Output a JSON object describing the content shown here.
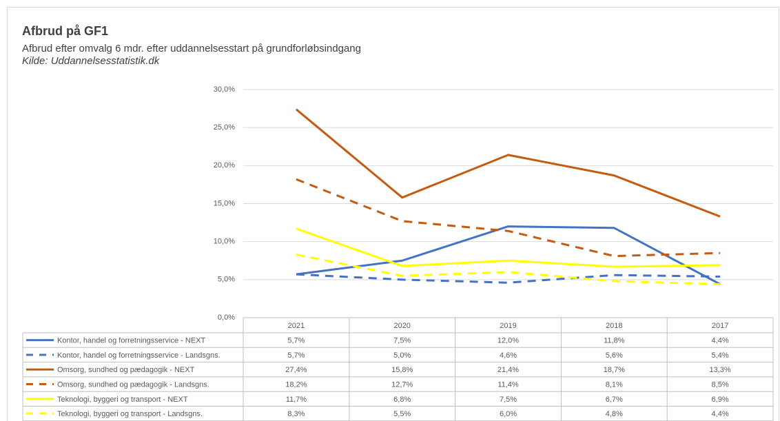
{
  "chart_data": {
    "type": "line",
    "title": "Afbrud på GF1",
    "subtitle": "Afbrud efter omvalg 6 mdr. efter uddannelsesstart på grundforløbsindgang",
    "source": "Kilde: Uddannelsesstatistik.dk",
    "categories": [
      "2021",
      "2020",
      "2019",
      "2018",
      "2017"
    ],
    "ylim": [
      0,
      30
    ],
    "yticks": [
      {
        "value": 0,
        "label": "0,0%"
      },
      {
        "value": 5,
        "label": "5,0%"
      },
      {
        "value": 10,
        "label": "10,0%"
      },
      {
        "value": 15,
        "label": "15,0%"
      },
      {
        "value": 20,
        "label": "20,0%"
      },
      {
        "value": 25,
        "label": "25,0%"
      },
      {
        "value": 30,
        "label": "30,0%"
      }
    ],
    "grid": true,
    "series": [
      {
        "name": "Kontor, handel og forretningsservice - NEXT",
        "color": "#4472c4",
        "dashed": false,
        "values": [
          5.7,
          7.5,
          12.0,
          11.8,
          4.4
        ],
        "value_labels": [
          "5,7%",
          "7,5%",
          "12,0%",
          "11,8%",
          "4,4%"
        ]
      },
      {
        "name": "Kontor, handel og forretningsservice - Landsgns.",
        "color": "#4472c4",
        "dashed": true,
        "values": [
          5.7,
          5.0,
          4.6,
          5.6,
          5.4
        ],
        "value_labels": [
          "5,7%",
          "5,0%",
          "4,6%",
          "5,6%",
          "5,4%"
        ]
      },
      {
        "name": "Omsorg, sundhed og pædagogik - NEXT",
        "color": "#c55a11",
        "dashed": false,
        "values": [
          27.4,
          15.8,
          21.4,
          18.7,
          13.3
        ],
        "value_labels": [
          "27,4%",
          "15,8%",
          "21,4%",
          "18,7%",
          "13,3%"
        ]
      },
      {
        "name": "Omsorg, sundhed og pædagogik - Landsgns.",
        "color": "#c55a11",
        "dashed": true,
        "values": [
          18.2,
          12.7,
          11.4,
          8.1,
          8.5
        ],
        "value_labels": [
          "18,2%",
          "12,7%",
          "11,4%",
          "8,1%",
          "8,5%"
        ]
      },
      {
        "name": "Teknologi, byggeri og transport - NEXT",
        "color": "#ffff00",
        "dashed": false,
        "values": [
          11.7,
          6.8,
          7.5,
          6.7,
          6.9
        ],
        "value_labels": [
          "11,7%",
          "6,8%",
          "7,5%",
          "6,7%",
          "6,9%"
        ]
      },
      {
        "name": "Teknologi, byggeri og transport - Landsgns.",
        "color": "#ffff00",
        "dashed": true,
        "values": [
          8.3,
          5.5,
          6.0,
          4.8,
          4.4
        ],
        "value_labels": [
          "8,3%",
          "5,5%",
          "6,0%",
          "4,8%",
          "4,4%"
        ]
      }
    ]
  }
}
